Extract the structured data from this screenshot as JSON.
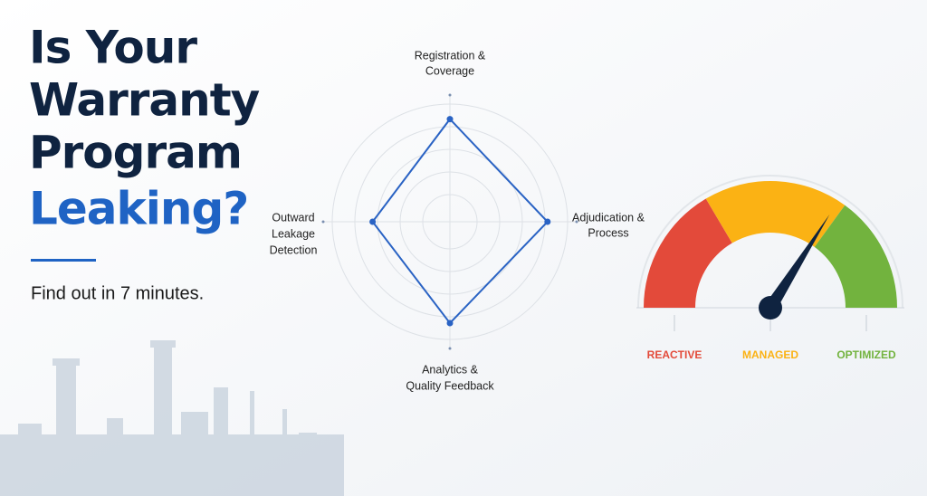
{
  "headline": {
    "lines": [
      "Is Your",
      "Warranty",
      "Program"
    ],
    "highlight": "Leaking?",
    "subtitle": "Find out in 7 minutes."
  },
  "radar": {
    "axes": [
      [
        "Registration &",
        "Coverage"
      ],
      [
        "Adjudication &",
        "Process"
      ],
      [
        "Analytics &",
        "Quality Feedback"
      ],
      [
        "Outward",
        "Leakage",
        "Detection"
      ]
    ],
    "values": [
      81,
      77,
      80,
      61
    ],
    "range": [
      0,
      100
    ],
    "color": "#2a63c4"
  },
  "gauge": {
    "range": [
      0,
      100
    ],
    "value": 68,
    "zones": [
      {
        "label": "REACTIVE",
        "end": 33,
        "color": "#e34a3a"
      },
      {
        "label": "MANAGED",
        "end": 70,
        "color": "#fbb214"
      },
      {
        "label": "OPTIMIZED",
        "end": 100,
        "color": "#72b33e"
      }
    ]
  }
}
